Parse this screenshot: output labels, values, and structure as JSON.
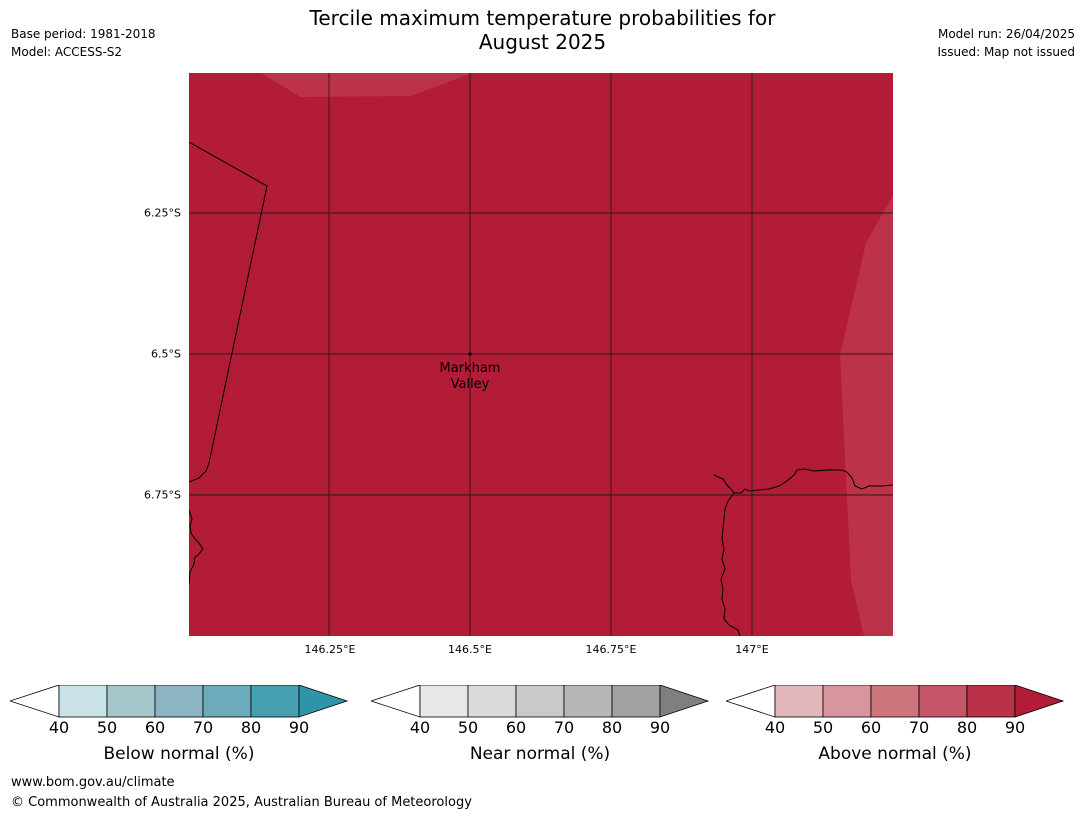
{
  "title": {
    "line1": "Tercile maximum temperature probabilities for",
    "line2": "August 2025"
  },
  "meta_left": {
    "base_period": "Base period: 1981-2018",
    "model": "Model: ACCESS-S2"
  },
  "meta_right": {
    "model_run": "Model run: 26/04/2025",
    "issued": "Issued: Map not issued"
  },
  "map": {
    "lat_labels": [
      "6.25°S",
      "6.5°S",
      "6.75°S"
    ],
    "lon_labels": [
      "146.25°E",
      "146.5°E",
      "146.75°E",
      "147°E"
    ],
    "place": {
      "line1": "Markham",
      "line2": "Valley"
    },
    "fill_dominant": "#b21c37",
    "fill_edge": "#bc3249",
    "dominant_category": "Above normal",
    "dominant_range": "80-90"
  },
  "colorbars": [
    {
      "title": "Below normal (%)",
      "ticks": [
        "40",
        "50",
        "60",
        "70",
        "80",
        "90"
      ],
      "colors": [
        "#ffffff",
        "#c9e2e7",
        "#a7c6cc",
        "#8bb5c2",
        "#6babba",
        "#45a0b1",
        "#2d95a7"
      ]
    },
    {
      "title": "Near normal (%)",
      "ticks": [
        "40",
        "50",
        "60",
        "70",
        "80",
        "90"
      ],
      "colors": [
        "#ffffff",
        "#e7e7e7",
        "#dadada",
        "#c9c9c9",
        "#b7b7b7",
        "#a1a1a1",
        "#7f7f7f"
      ]
    },
    {
      "title": "Above normal (%)",
      "ticks": [
        "40",
        "50",
        "60",
        "70",
        "80",
        "90"
      ],
      "colors": [
        "#ffffff",
        "#e2b7bb",
        "#d7969d",
        "#cc757d",
        "#c45667",
        "#ba3148",
        "#b21c37"
      ]
    }
  ],
  "footer": {
    "url": "www.bom.gov.au/climate",
    "copyright": "© Commonwealth of Australia 2025, Australian Bureau of Meteorology"
  }
}
